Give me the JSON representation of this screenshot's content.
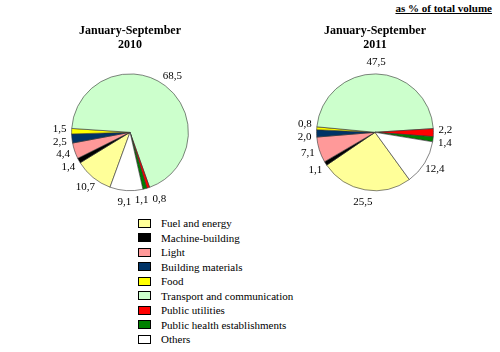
{
  "annotation": "as % of total volume",
  "chart_data": [
    {
      "type": "pie",
      "title": "January-September\n2010",
      "categories": [
        "Fuel and energy",
        "Machine-building",
        "Light",
        "Building materials",
        "Food",
        "Transport and communication",
        "Public utilities",
        "Public health establishments",
        "Others"
      ],
      "values": [
        10.7,
        1.4,
        4.4,
        2.5,
        1.5,
        68.5,
        0.8,
        1.1,
        9.1
      ],
      "value_labels": [
        "10,7",
        "1,4",
        "4,4",
        "2,5",
        "1,5",
        "68,5",
        "0,8",
        "1,1",
        "9,1"
      ],
      "colors": [
        "#ffff99",
        "#000000",
        "#ff9999",
        "#003366",
        "#ffff00",
        "#ccffcc",
        "#ff0000",
        "#008000",
        "#ffffff"
      ],
      "data_labels": true,
      "legend": "bottom"
    },
    {
      "type": "pie",
      "title": "January-September\n2011",
      "categories": [
        "Fuel and energy",
        "Machine-building",
        "Light",
        "Building materials",
        "Food",
        "Transport and communication",
        "Public utilities",
        "Public health establishments",
        "Others"
      ],
      "values": [
        25.5,
        1.1,
        7.1,
        2.0,
        0.8,
        47.5,
        2.2,
        1.4,
        12.4
      ],
      "value_labels": [
        "25,5",
        "1,1",
        "7,1",
        "2,0",
        "0,8",
        "47,5",
        "2,2",
        "1,4",
        "12,4"
      ],
      "colors": [
        "#ffff99",
        "#000000",
        "#ff9999",
        "#003366",
        "#ffff00",
        "#ccffcc",
        "#ff0000",
        "#008000",
        "#ffffff"
      ],
      "data_labels": true,
      "legend": "bottom"
    }
  ]
}
